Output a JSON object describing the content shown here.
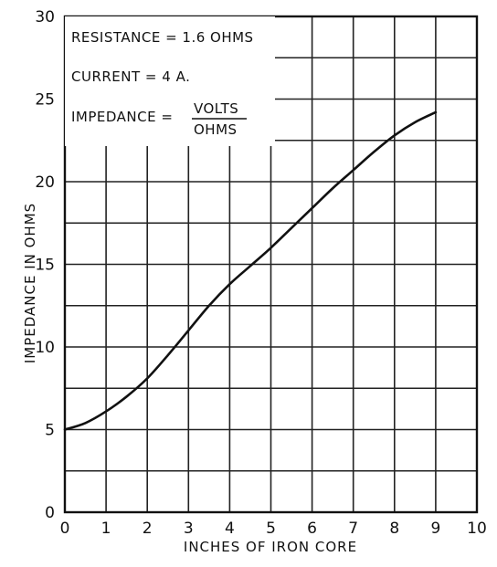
{
  "chart_data": {
    "type": "line",
    "title": "",
    "xlabel": "INCHES OF IRON CORE",
    "ylabel": "IMPEDANCE IN OHMS",
    "xlim": [
      0,
      10
    ],
    "ylim": [
      0,
      30
    ],
    "x_ticks": [
      "0",
      "1",
      "2",
      "3",
      "4",
      "5",
      "6",
      "7",
      "8",
      "9",
      "10"
    ],
    "y_ticks": [
      "0",
      "5",
      "10",
      "15",
      "20",
      "25",
      "30"
    ],
    "grid": true,
    "annotations": {
      "resistance": "RESISTANCE = 1.6 OHMS",
      "current": "CURRENT = 4 A.",
      "impedance_label": "IMPEDANCE =",
      "impedance_numerator": "VOLTS",
      "impedance_denominator": "OHMS"
    },
    "series": [
      {
        "x": [
          0,
          0.5,
          1,
          1.5,
          2,
          2.5,
          3,
          3.5,
          4,
          4.5,
          5,
          5.5,
          6,
          6.5,
          7,
          7.5,
          8,
          8.5,
          9
        ],
        "y": [
          5.0,
          5.4,
          6.1,
          7.0,
          8.1,
          9.5,
          11.0,
          12.5,
          13.8,
          14.9,
          16.0,
          17.2,
          18.4,
          19.6,
          20.7,
          21.8,
          22.8,
          23.6,
          24.2
        ]
      }
    ]
  }
}
